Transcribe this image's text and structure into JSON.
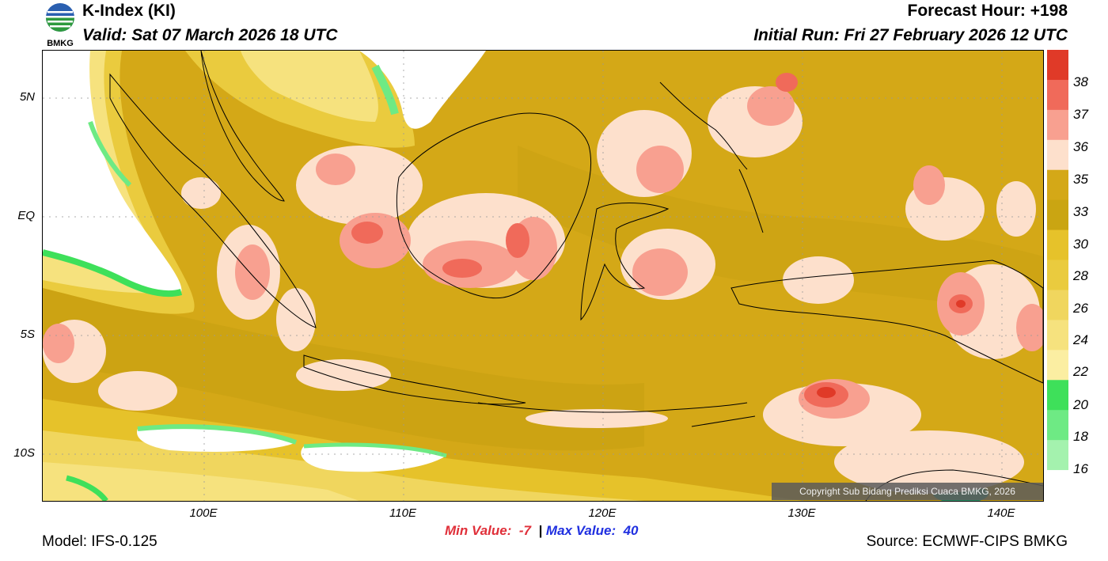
{
  "header": {
    "title": "K-Index (KI)",
    "valid": "Valid: Sat 07 March 2026 18 UTC",
    "forecast_hour": "Forecast Hour: +198",
    "initial_run": "Initial Run: Fri 27 February 2026 12 UTC",
    "logo_text": "BMKG"
  },
  "axes": {
    "lat_labels": [
      "5N",
      "EQ",
      "5S",
      "10S"
    ],
    "lon_labels": [
      "100E",
      "110E",
      "120E",
      "130E",
      "140E"
    ]
  },
  "colorbar": {
    "labels": [
      "38",
      "37",
      "36",
      "35",
      "33",
      "30",
      "28",
      "26",
      "24",
      "22",
      "20",
      "18",
      "16"
    ],
    "colors": [
      "#e03a28",
      "#f06a5a",
      "#f8a090",
      "#fde0cc",
      "#d4a817",
      "#caa512",
      "#e6c22a",
      "#eacb3e",
      "#f0d65e",
      "#f6e27e",
      "#fbeea2",
      "#3ee05a",
      "#6eea84",
      "#a4f2ae",
      "#ffffff"
    ]
  },
  "stats": {
    "min_label": "Min Value:",
    "min_value": "-7",
    "separator": "|",
    "max_label": "Max Value:",
    "max_value": "40"
  },
  "footer": {
    "model": "Model: IFS-0.125",
    "source": "Source: ECMWF-CIPS BMKG",
    "copyright": "Copyright Sub Bidang Prediksi Cuaca BMKG, 2026"
  }
}
